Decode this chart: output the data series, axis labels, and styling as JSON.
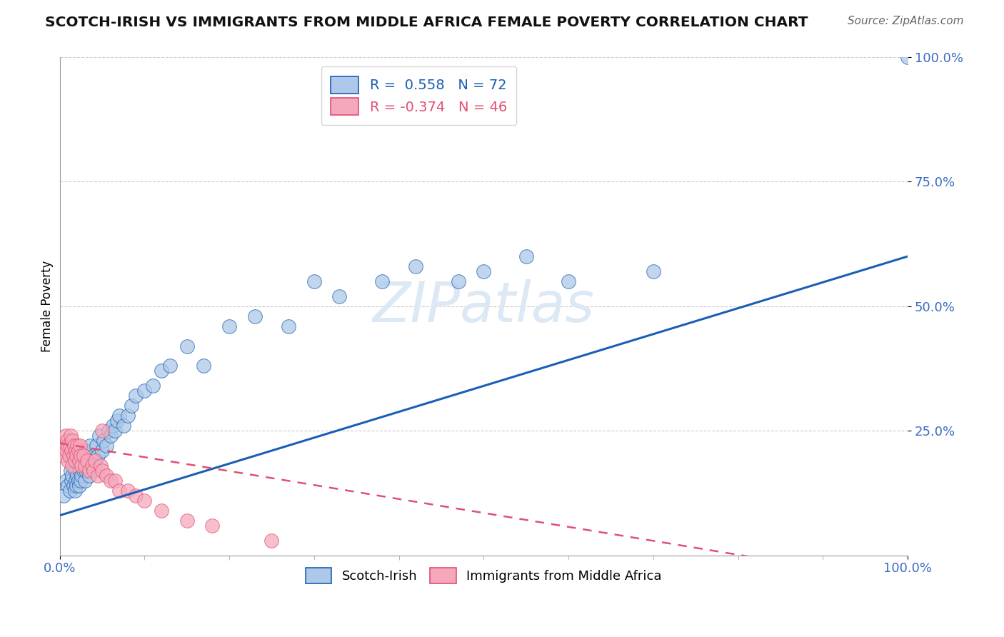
{
  "title": "SCOTCH-IRISH VS IMMIGRANTS FROM MIDDLE AFRICA FEMALE POVERTY CORRELATION CHART",
  "source": "Source: ZipAtlas.com",
  "ylabel": "Female Poverty",
  "blue_R": 0.558,
  "blue_N": 72,
  "pink_R": -0.374,
  "pink_N": 46,
  "blue_color": "#adc8e8",
  "pink_color": "#f5a8bc",
  "blue_line_color": "#1a5fb4",
  "pink_line_color": "#e05070",
  "blue_line_slope": 0.52,
  "blue_line_intercept": 0.08,
  "pink_line_slope": -0.28,
  "pink_line_intercept": 0.225,
  "blue_scatter_x": [
    0.005,
    0.008,
    0.01,
    0.012,
    0.013,
    0.014,
    0.015,
    0.015,
    0.016,
    0.017,
    0.018,
    0.018,
    0.019,
    0.02,
    0.02,
    0.021,
    0.022,
    0.022,
    0.023,
    0.024,
    0.025,
    0.025,
    0.026,
    0.027,
    0.028,
    0.029,
    0.03,
    0.03,
    0.031,
    0.032,
    0.033,
    0.034,
    0.035,
    0.036,
    0.038,
    0.04,
    0.042,
    0.043,
    0.045,
    0.047,
    0.05,
    0.052,
    0.055,
    0.058,
    0.06,
    0.063,
    0.065,
    0.068,
    0.07,
    0.075,
    0.08,
    0.085,
    0.09,
    0.1,
    0.11,
    0.12,
    0.13,
    0.15,
    0.17,
    0.2,
    0.23,
    0.27,
    0.3,
    0.33,
    0.38,
    0.42,
    0.47,
    0.5,
    0.55,
    0.6,
    0.7,
    1.0
  ],
  "blue_scatter_y": [
    0.12,
    0.15,
    0.14,
    0.13,
    0.17,
    0.15,
    0.16,
    0.2,
    0.14,
    0.18,
    0.13,
    0.17,
    0.15,
    0.14,
    0.19,
    0.16,
    0.15,
    0.18,
    0.14,
    0.17,
    0.15,
    0.2,
    0.16,
    0.18,
    0.17,
    0.19,
    0.15,
    0.21,
    0.17,
    0.19,
    0.18,
    0.2,
    0.16,
    0.22,
    0.18,
    0.2,
    0.19,
    0.22,
    0.2,
    0.24,
    0.21,
    0.23,
    0.22,
    0.25,
    0.24,
    0.26,
    0.25,
    0.27,
    0.28,
    0.26,
    0.28,
    0.3,
    0.32,
    0.33,
    0.34,
    0.37,
    0.38,
    0.42,
    0.38,
    0.46,
    0.48,
    0.46,
    0.55,
    0.52,
    0.55,
    0.58,
    0.55,
    0.57,
    0.6,
    0.55,
    0.57,
    1.0
  ],
  "pink_scatter_x": [
    0.005,
    0.006,
    0.007,
    0.008,
    0.009,
    0.01,
    0.01,
    0.011,
    0.012,
    0.013,
    0.014,
    0.015,
    0.015,
    0.016,
    0.017,
    0.018,
    0.019,
    0.02,
    0.021,
    0.022,
    0.023,
    0.024,
    0.025,
    0.026,
    0.028,
    0.03,
    0.032,
    0.035,
    0.038,
    0.04,
    0.042,
    0.045,
    0.048,
    0.05,
    0.055,
    0.06,
    0.065,
    0.07,
    0.08,
    0.09,
    0.1,
    0.12,
    0.15,
    0.18,
    0.25,
    0.05
  ],
  "pink_scatter_y": [
    0.2,
    0.22,
    0.24,
    0.21,
    0.23,
    0.19,
    0.22,
    0.2,
    0.22,
    0.24,
    0.21,
    0.23,
    0.18,
    0.2,
    0.22,
    0.19,
    0.21,
    0.2,
    0.22,
    0.21,
    0.19,
    0.22,
    0.2,
    0.18,
    0.2,
    0.18,
    0.19,
    0.17,
    0.18,
    0.17,
    0.19,
    0.16,
    0.18,
    0.17,
    0.16,
    0.15,
    0.15,
    0.13,
    0.13,
    0.12,
    0.11,
    0.09,
    0.07,
    0.06,
    0.03,
    0.25
  ]
}
